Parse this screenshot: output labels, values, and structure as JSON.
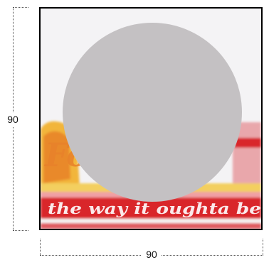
{
  "dimensions": {
    "height_label": "90",
    "width_label": "90"
  },
  "photo": {
    "banner_text": "the way it oughta be",
    "sign_text": "Fo",
    "colors": {
      "sky": "#f4f3f5",
      "banner_red": "#d9252b",
      "banner_text": "#ffffff",
      "sign_yellow": "#f2b53a",
      "sign_orange": "#e8812a"
    }
  },
  "overlay": {
    "shape": "circle",
    "color": "#c4c1c3"
  }
}
